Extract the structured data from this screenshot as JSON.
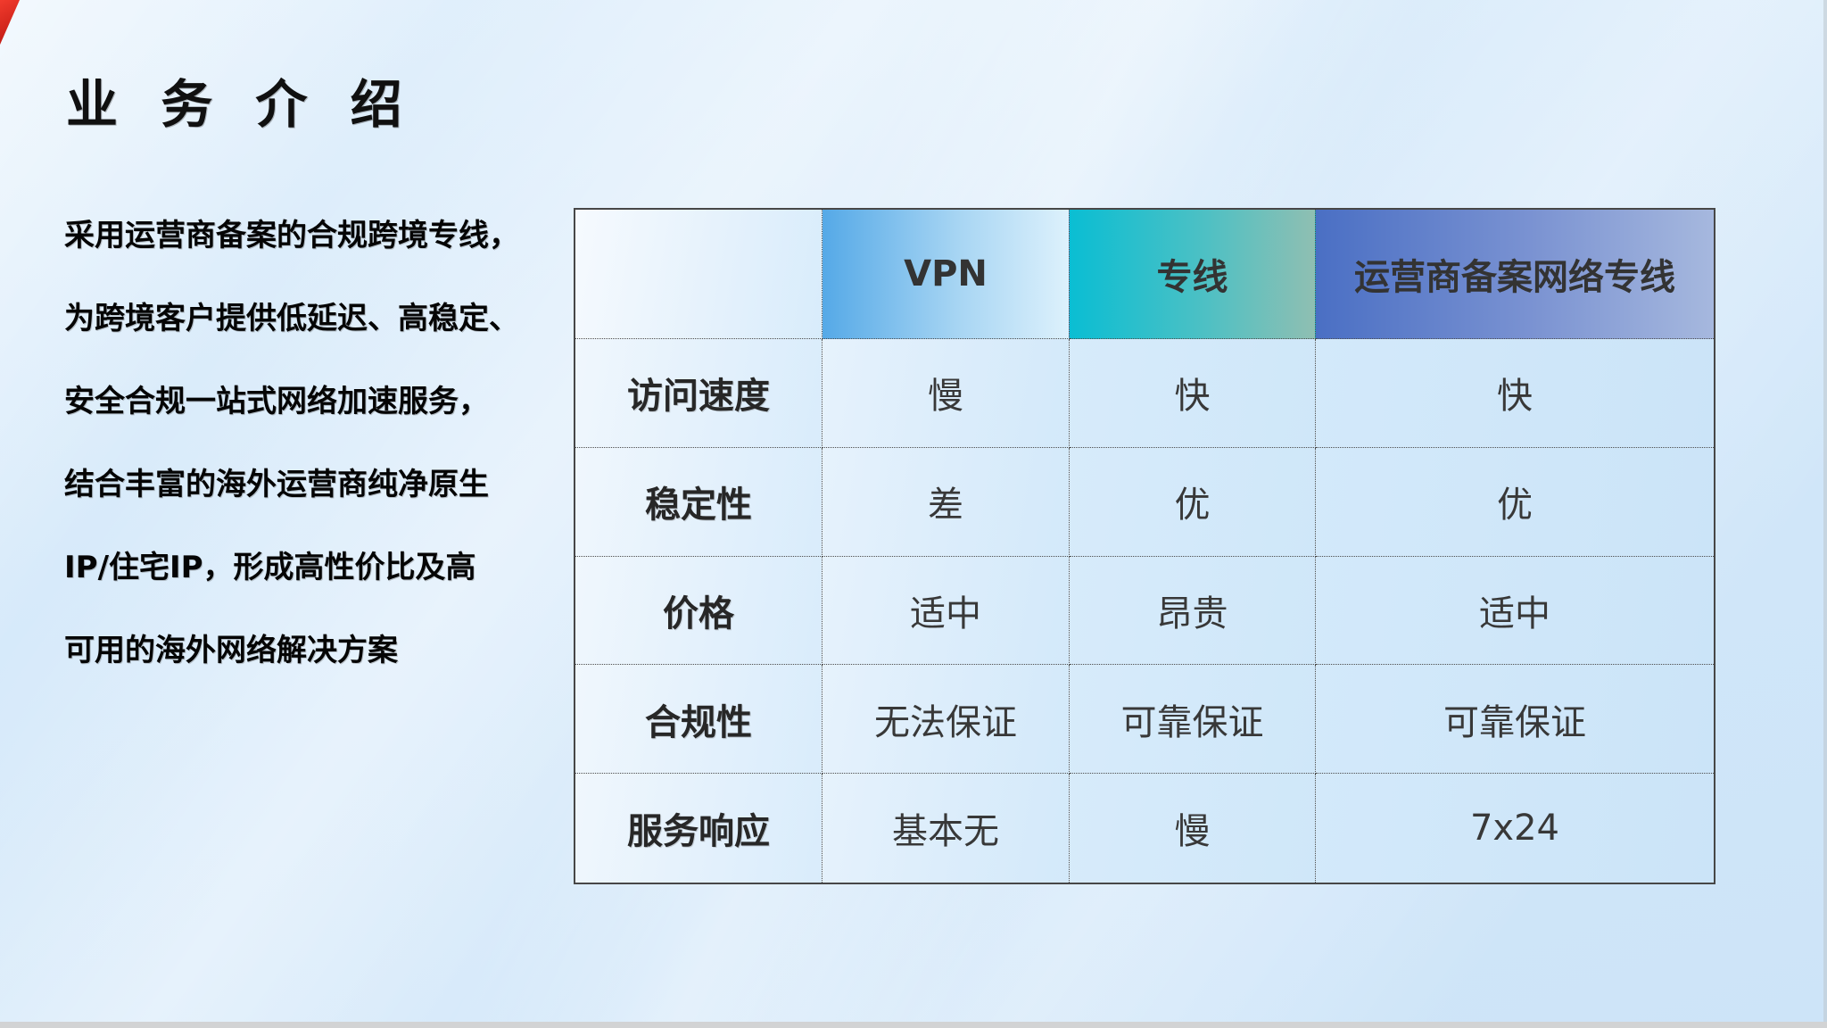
{
  "slide": {
    "title": "业 务 介 绍",
    "description_lines": [
      "采用运营商备案的合规跨境专线，",
      "为跨境客户提供低延迟、高稳定、",
      "安全合规一站式网络加速服务，",
      "结合丰富的海外运营商纯净原生",
      "IP/住宅IP，形成高性价比及高",
      "可用的海外网络解决方案"
    ]
  },
  "table": {
    "columns": [
      "",
      "VPN",
      "专线",
      "运营商备案网络专线"
    ],
    "rows": [
      {
        "label": "访问速度",
        "values": [
          "慢",
          "快",
          "快"
        ]
      },
      {
        "label": "稳定性",
        "values": [
          "差",
          "优",
          "优"
        ]
      },
      {
        "label": "价格",
        "values": [
          "适中",
          "昂贵",
          "适中"
        ]
      },
      {
        "label": "合规性",
        "values": [
          "无法保证",
          "可靠保证",
          "可靠保证"
        ]
      },
      {
        "label": "服务响应",
        "values": [
          "基本无",
          "慢",
          "7x24"
        ]
      }
    ]
  },
  "colors": {
    "vpn_header_gradient_start": "#55a9e7",
    "vpn_header_gradient_end": "#ddf1fc",
    "dedicated_header_gradient_start": "#0abed3",
    "dedicated_header_gradient_end": "#8fbfb2",
    "carrier_header_gradient_start": "#4a6fc4",
    "carrier_header_gradient_end": "#a6b8de",
    "corner_accent_red": "#e5302a",
    "background_blue": "#d5e9fa",
    "text_dark": "#2e2e2e"
  }
}
